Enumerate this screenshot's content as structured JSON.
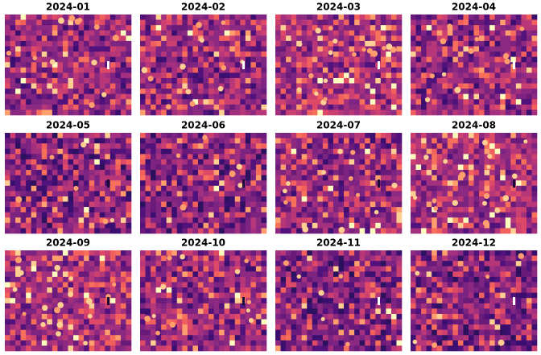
{
  "panels": [
    {
      "title": "2024-01"
    },
    {
      "title": "2024-02"
    },
    {
      "title": "2024-03"
    },
    {
      "title": "2024-04"
    },
    {
      "title": "2024-05"
    },
    {
      "title": "2024-06"
    },
    {
      "title": "2024-07"
    },
    {
      "title": "2024-08"
    },
    {
      "title": "2024-09"
    },
    {
      "title": "2024-10"
    },
    {
      "title": "2024-11"
    },
    {
      "title": "2024-12"
    }
  ]
}
